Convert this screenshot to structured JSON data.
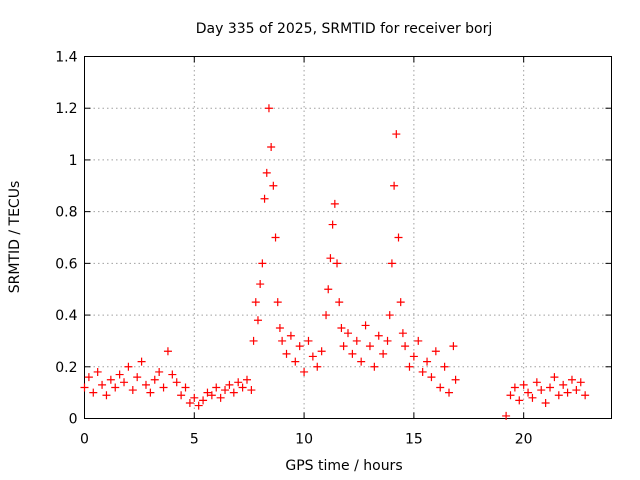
{
  "chart_data": {
    "type": "scatter",
    "title": "Day 335 of 2025, SRMTID for receiver borj",
    "xlabel": "GPS time / hours",
    "ylabel": "SRMTID / TECUs",
    "xlim": [
      0,
      24
    ],
    "ylim": [
      0,
      1.4
    ],
    "x_ticks": [
      0,
      5,
      10,
      15,
      20
    ],
    "x_tick_labels": [
      "0",
      "5",
      "10",
      "15",
      "20"
    ],
    "y_ticks": [
      0,
      0.2,
      0.4,
      0.6,
      0.8,
      1.0,
      1.2,
      1.4
    ],
    "y_tick_labels": [
      "0",
      "0.2",
      "0.4",
      "0.6",
      "0.8",
      "1",
      "1.2",
      "1.4"
    ],
    "grid": true,
    "marker": "+",
    "series": [
      {
        "name": "SRMTID",
        "color": "#ff0000",
        "x": [
          0.0,
          0.2,
          0.4,
          0.6,
          0.8,
          1.0,
          1.2,
          1.4,
          1.6,
          1.8,
          2.0,
          2.2,
          2.4,
          2.6,
          2.8,
          3.0,
          3.2,
          3.4,
          3.6,
          3.8,
          4.0,
          4.2,
          4.4,
          4.6,
          4.8,
          5.0,
          5.2,
          5.4,
          5.6,
          5.8,
          6.0,
          6.2,
          6.4,
          6.6,
          6.8,
          7.0,
          7.2,
          7.4,
          7.6,
          7.7,
          7.8,
          7.9,
          8.0,
          8.1,
          8.2,
          8.3,
          8.4,
          8.5,
          8.6,
          8.7,
          8.8,
          8.9,
          9.0,
          9.2,
          9.4,
          9.6,
          9.8,
          10.0,
          10.2,
          10.4,
          10.6,
          10.8,
          11.0,
          11.1,
          11.2,
          11.3,
          11.4,
          11.5,
          11.6,
          11.7,
          11.8,
          12.0,
          12.2,
          12.4,
          12.6,
          12.8,
          13.0,
          13.2,
          13.4,
          13.6,
          13.8,
          13.9,
          14.0,
          14.1,
          14.2,
          14.3,
          14.4,
          14.5,
          14.6,
          14.8,
          15.0,
          15.2,
          15.4,
          15.6,
          15.8,
          16.0,
          16.2,
          16.4,
          16.6,
          16.8,
          16.9,
          19.2,
          19.4,
          19.6,
          19.8,
          20.0,
          20.2,
          20.4,
          20.6,
          20.8,
          21.0,
          21.2,
          21.4,
          21.6,
          21.8,
          22.0,
          22.2,
          22.4,
          22.6,
          22.8
        ],
        "values": [
          0.12,
          0.16,
          0.1,
          0.18,
          0.13,
          0.09,
          0.15,
          0.12,
          0.17,
          0.14,
          0.2,
          0.11,
          0.16,
          0.22,
          0.13,
          0.1,
          0.15,
          0.18,
          0.12,
          0.26,
          0.17,
          0.14,
          0.09,
          0.12,
          0.06,
          0.08,
          0.05,
          0.07,
          0.1,
          0.09,
          0.12,
          0.08,
          0.11,
          0.13,
          0.1,
          0.14,
          0.12,
          0.15,
          0.11,
          0.3,
          0.45,
          0.38,
          0.52,
          0.6,
          0.85,
          0.95,
          1.2,
          1.05,
          0.9,
          0.7,
          0.45,
          0.35,
          0.3,
          0.25,
          0.32,
          0.22,
          0.28,
          0.18,
          0.3,
          0.24,
          0.2,
          0.26,
          0.4,
          0.5,
          0.62,
          0.75,
          0.83,
          0.6,
          0.45,
          0.35,
          0.28,
          0.33,
          0.25,
          0.3,
          0.22,
          0.36,
          0.28,
          0.2,
          0.32,
          0.25,
          0.3,
          0.4,
          0.6,
          0.9,
          1.1,
          0.7,
          0.45,
          0.33,
          0.28,
          0.2,
          0.24,
          0.3,
          0.18,
          0.22,
          0.16,
          0.26,
          0.12,
          0.2,
          0.1,
          0.28,
          0.15,
          0.01,
          0.09,
          0.12,
          0.07,
          0.13,
          0.1,
          0.08,
          0.14,
          0.11,
          0.06,
          0.12,
          0.16,
          0.09,
          0.13,
          0.1,
          0.15,
          0.11,
          0.14,
          0.09
        ]
      }
    ]
  }
}
